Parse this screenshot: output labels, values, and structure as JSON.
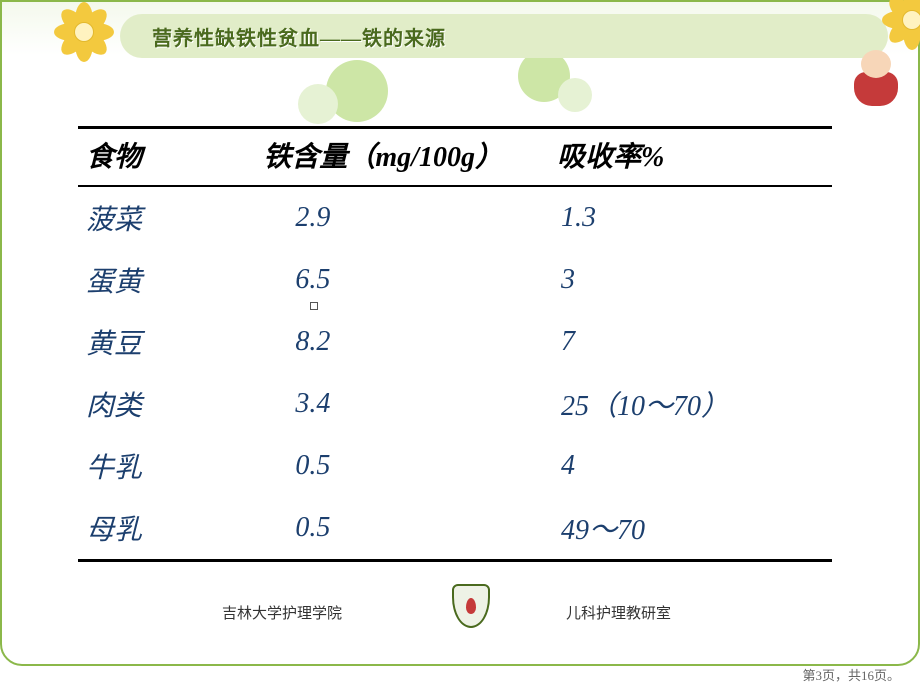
{
  "title": "营养性缺铁性贫血——铁的来源",
  "table": {
    "columns": [
      "食物",
      "铁含量（mg/100g）",
      "吸收率%"
    ],
    "rows": [
      {
        "food": "菠菜",
        "iron": "2.9",
        "absorption": "1.3"
      },
      {
        "food": "蛋黄",
        "iron": "6.5",
        "absorption": "3"
      },
      {
        "food": "黄豆",
        "iron": "8.2",
        "absorption": "7"
      },
      {
        "food": "肉类",
        "iron": "3.4",
        "absorption": "25（10～70）"
      },
      {
        "food": "牛乳",
        "iron": "0.5",
        "absorption": "4"
      },
      {
        "food": "母乳",
        "iron": "0.5",
        "absorption": "49～70"
      }
    ],
    "header_color": "#000000",
    "body_color": "#1c3f6e",
    "font_size_header": 28,
    "font_size_body": 28,
    "border_color": "#000000"
  },
  "footer": {
    "left": "吉林大学护理学院",
    "right": "儿科护理教研室"
  },
  "page_info": "第3页，共16页。",
  "colors": {
    "frame_border": "#8bb84a",
    "title_bg": "#e1edc8",
    "title_text": "#4a6a1e",
    "flower": "#f3c93e",
    "circle_light": "#e6f2d4",
    "circle_dark": "#cde6a6",
    "baby_red": "#c53a3a"
  }
}
